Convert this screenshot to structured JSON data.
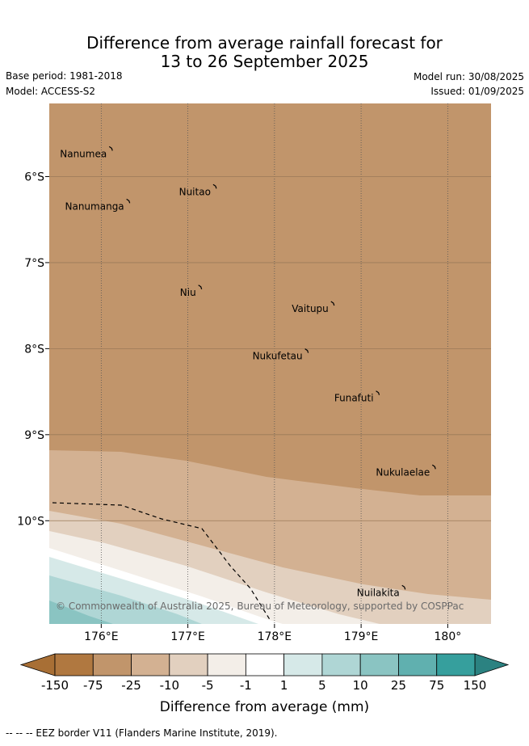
{
  "title_line1": "Difference from average rainfall forecast for",
  "title_line2": "13 to 26 September 2025",
  "base_period": "Base period: 1981-2018",
  "model": "Model: ACCESS-S2",
  "model_run": "Model run: 30/08/2025",
  "issued": "Issued: 01/09/2025",
  "copyright": "© Commonwealth of Australia 2025, Bureau of Meteorology, supported by COSPPac",
  "map": {
    "lon_range": [
      175.4,
      180.5
    ],
    "lat_range": [
      -5.15,
      -11.2
    ],
    "lon_ticks": [
      {
        "lon": 176,
        "label": "176°E"
      },
      {
        "lon": 177,
        "label": "177°E"
      },
      {
        "lon": 178,
        "label": "178°E"
      },
      {
        "lon": 179,
        "label": "179°E"
      },
      {
        "lon": 180,
        "label": "180°"
      }
    ],
    "lat_ticks": [
      {
        "lat": -6,
        "label": "6°S"
      },
      {
        "lat": -7,
        "label": "7°S"
      },
      {
        "lat": -8,
        "label": "8°S"
      },
      {
        "lat": -9,
        "label": "9°S"
      },
      {
        "lat": -10,
        "label": "10°S"
      }
    ],
    "islands": [
      {
        "name": "Nanumea",
        "lon": 176.12,
        "lat": -5.68
      },
      {
        "name": "Nuitao",
        "lon": 177.32,
        "lat": -6.12
      },
      {
        "name": "Nanumanga",
        "lon": 176.32,
        "lat": -6.29
      },
      {
        "name": "Niu",
        "lon": 177.15,
        "lat": -7.29
      },
      {
        "name": "Vaitupu",
        "lon": 178.68,
        "lat": -7.48
      },
      {
        "name": "Nukufetau",
        "lon": 178.38,
        "lat": -8.03
      },
      {
        "name": "Funafuti",
        "lon": 179.2,
        "lat": -8.52
      },
      {
        "name": "Nukulaelae",
        "lon": 179.85,
        "lat": -9.38
      },
      {
        "name": "Nuilakita",
        "lon": 179.5,
        "lat": -10.78
      }
    ]
  },
  "colorbar": {
    "labels": [
      "-150",
      "-75",
      "-25",
      "-10",
      "-5",
      "-1",
      "1",
      "5",
      "10",
      "25",
      "75",
      "150"
    ],
    "colors": {
      "below_min": "#a86f35",
      "c1": "#b07840",
      "c2": "#c1956b",
      "c3": "#d3b192",
      "c4": "#e2d0bf",
      "c5": "#f3eee8",
      "c6": "#ffffff",
      "c7": "#d6e9e8",
      "c8": "#afd6d5",
      "c9": "#8ac4c2",
      "c10": "#60b0af",
      "c11": "#369f9d",
      "above_max": "#2b8281"
    },
    "label": "Difference from average (mm)"
  },
  "footer": "-- -- -- EEZ border V11 (Flanders Marine Institute, 2019)."
}
